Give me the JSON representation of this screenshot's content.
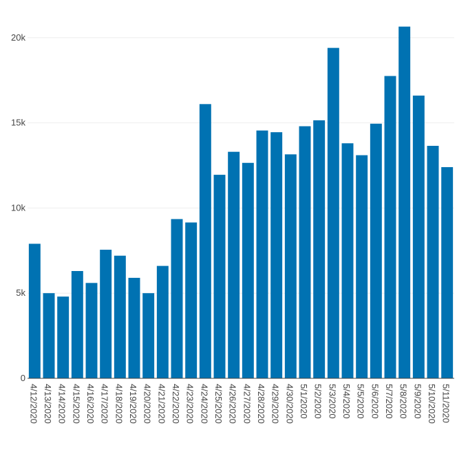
{
  "chart_data": {
    "type": "bar",
    "title": "",
    "xlabel": "",
    "ylabel": "",
    "bar_color": "#0072b2",
    "grid": true,
    "ylim": [
      0,
      21000
    ],
    "yticks": [
      {
        "value": 0,
        "label": "0"
      },
      {
        "value": 5000,
        "label": "5k"
      },
      {
        "value": 10000,
        "label": "10k"
      },
      {
        "value": 15000,
        "label": "15k"
      },
      {
        "value": 20000,
        "label": "20k"
      }
    ],
    "categories": [
      "4/12/2020",
      "4/13/2020",
      "4/14/2020",
      "4/15/2020",
      "4/16/2020",
      "4/17/2020",
      "4/18/2020",
      "4/19/2020",
      "4/20/2020",
      "4/21/2020",
      "4/22/2020",
      "4/23/2020",
      "4/24/2020",
      "4/25/2020",
      "4/26/2020",
      "4/27/2020",
      "4/28/2020",
      "4/29/2020",
      "4/30/2020",
      "5/1/2020",
      "5/2/2020",
      "5/3/2020",
      "5/4/2020",
      "5/5/2020",
      "5/6/2020",
      "5/7/2020",
      "5/8/2020",
      "5/9/2020",
      "5/10/2020",
      "5/11/2020"
    ],
    "values": [
      7900,
      5000,
      4800,
      6300,
      5600,
      7550,
      7200,
      5900,
      5000,
      6600,
      9350,
      9150,
      16100,
      11950,
      13300,
      12650,
      14550,
      14450,
      13150,
      14800,
      15150,
      19400,
      13800,
      13100,
      14950,
      17750,
      20650,
      16600,
      13650,
      12400
    ]
  }
}
